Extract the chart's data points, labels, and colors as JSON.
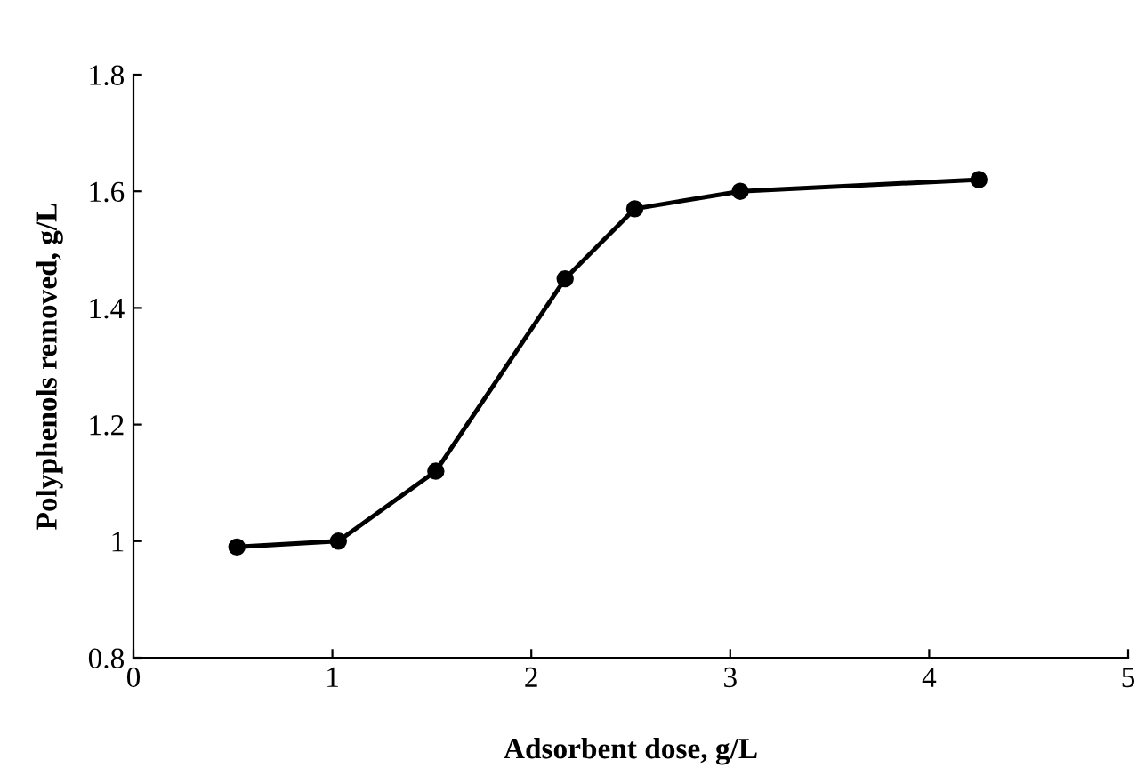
{
  "chart_data": {
    "type": "line",
    "xlabel": "Adsorbent dose, g/L",
    "ylabel": "Polyphenols removed, g/L",
    "x": [
      0.52,
      1.03,
      1.52,
      2.17,
      2.52,
      3.05,
      4.25
    ],
    "series": [
      {
        "color": "#000000",
        "values": [
          0.99,
          1.0,
          1.12,
          1.45,
          1.57,
          1.6,
          1.62
        ]
      }
    ],
    "xlim": [
      0,
      5
    ],
    "xticks": [
      0,
      1,
      2,
      3,
      4,
      5
    ],
    "ylim": [
      0.8,
      1.8
    ],
    "yticks": [
      0.8,
      1,
      1.2,
      1.4,
      1.6,
      1.8
    ],
    "marker": "circle",
    "line_style": "solid",
    "grid": false,
    "legend": false
  }
}
